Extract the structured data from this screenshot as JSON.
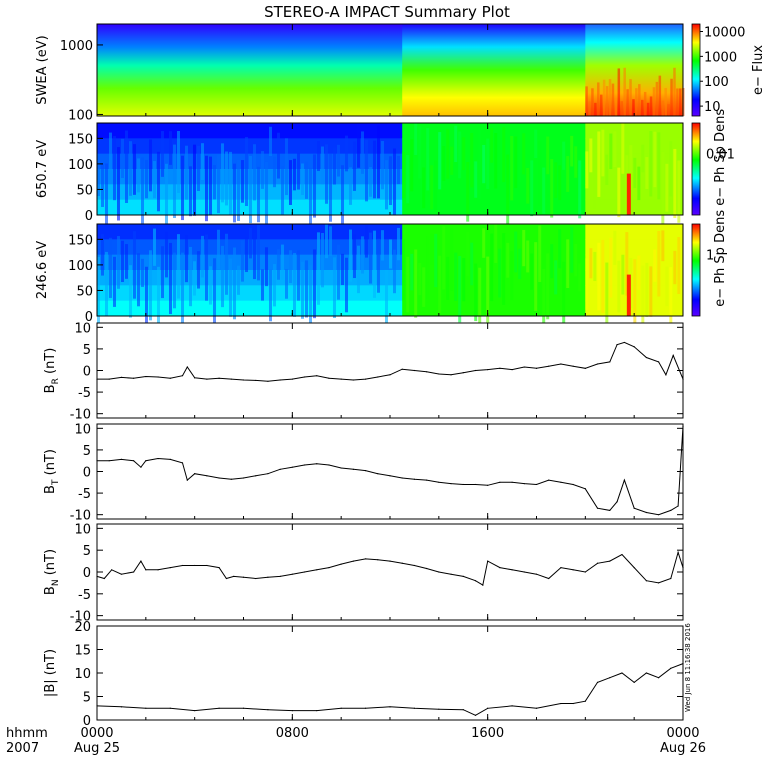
{
  "title": "STEREO-A IMPACT Summary Plot",
  "chart_data": [
    {
      "type": "heatmap",
      "id": "swea",
      "ylabel": "SWEA (eV)",
      "yscale": "log",
      "ylim": [
        95,
        2000
      ],
      "yticks": [
        "100",
        "1000"
      ],
      "colorbar_label": "e− Flux",
      "colorbar_ticks": [
        "10",
        "100",
        "1000",
        "10000"
      ],
      "colorbar_range": [
        4,
        20000
      ],
      "profile_regions": [
        {
          "x_start": 0.0,
          "x_end": 12.5,
          "flux_bottom": 500,
          "flux_top": 2
        },
        {
          "x_start": 12.5,
          "x_end": 20.0,
          "flux_bottom": 3000,
          "flux_top": 3
        },
        {
          "x_start": 20.0,
          "x_end": 24.0,
          "flux_bottom": 10000,
          "flux_top": 8
        }
      ]
    },
    {
      "type": "heatmap",
      "id": "pad650",
      "ylabel": "650.7 eV",
      "ylim": [
        0,
        180
      ],
      "yticks": [
        "0",
        "50",
        "100",
        "150"
      ],
      "colorbar_label": "e− Ph Sp Dens",
      "colorbar_ticks": [
        "0.01"
      ],
      "regions": [
        {
          "x_start": 0.0,
          "x_end": 12.5,
          "level": 0.25
        },
        {
          "x_start": 12.5,
          "x_end": 20.0,
          "level": 0.58
        },
        {
          "x_start": 20.0,
          "x_end": 24.0,
          "level": 0.72
        }
      ]
    },
    {
      "type": "heatmap",
      "id": "pad246",
      "ylabel": "246.6 eV",
      "ylim": [
        0,
        180
      ],
      "yticks": [
        "0",
        "50",
        "100",
        "150"
      ],
      "colorbar_label": "e− Ph Sp Dens",
      "colorbar_ticks": [
        "1"
      ],
      "regions": [
        {
          "x_start": 0.0,
          "x_end": 12.5,
          "level": 0.28
        },
        {
          "x_start": 12.5,
          "x_end": 20.0,
          "level": 0.62
        },
        {
          "x_start": 20.0,
          "x_end": 24.0,
          "level": 0.78
        }
      ]
    },
    {
      "type": "line",
      "id": "br",
      "ylabel": "B",
      "ylabel_sub": "R",
      "ylabel_unit": "(nT)",
      "ylim": [
        -11,
        11
      ],
      "yticks": [
        -10,
        -5,
        0,
        5,
        10
      ],
      "x": [
        0,
        0.5,
        1,
        1.5,
        2,
        2.5,
        3,
        3.5,
        3.7,
        4,
        4.5,
        5,
        5.5,
        6,
        6.5,
        7,
        7.5,
        8,
        8.5,
        9,
        9.5,
        10,
        10.5,
        11,
        11.5,
        12,
        12.5,
        13,
        13.5,
        14,
        14.5,
        15,
        15.5,
        16,
        16.5,
        17,
        17.5,
        18,
        18.5,
        19,
        19.5,
        20,
        20.5,
        21,
        21.3,
        21.6,
        22,
        22.5,
        23,
        23.3,
        23.6,
        24
      ],
      "values": [
        -2,
        -2,
        -1.6,
        -1.8,
        -1.4,
        -1.5,
        -1.8,
        -1.2,
        0.8,
        -1.7,
        -2.0,
        -1.8,
        -2.0,
        -2.2,
        -2.3,
        -2.5,
        -2.2,
        -2.0,
        -1.5,
        -1.2,
        -1.8,
        -2.0,
        -2.2,
        -2.0,
        -1.5,
        -1.0,
        0.3,
        0.0,
        -0.3,
        -0.8,
        -1.0,
        -0.5,
        0.0,
        0.2,
        0.5,
        0.2,
        0.8,
        0.5,
        1.0,
        1.5,
        1.0,
        0.5,
        1.5,
        2.0,
        6.0,
        6.5,
        5.5,
        3.0,
        2.0,
        -1.0,
        3.5,
        -2.0
      ]
    },
    {
      "type": "line",
      "id": "bt",
      "ylabel": "B",
      "ylabel_sub": "T",
      "ylabel_unit": "(nT)",
      "ylim": [
        -11,
        11
      ],
      "yticks": [
        -10,
        -5,
        0,
        5,
        10
      ],
      "x": [
        0,
        0.5,
        1,
        1.5,
        1.8,
        2,
        2.5,
        3,
        3.5,
        3.7,
        4,
        4.5,
        5,
        5.5,
        6,
        6.5,
        7,
        7.5,
        8,
        8.5,
        9,
        9.5,
        10,
        10.5,
        11,
        11.5,
        12,
        12.5,
        13,
        13.5,
        14,
        14.5,
        15,
        15.5,
        16,
        16.5,
        17,
        17.5,
        18,
        18.5,
        19,
        19.5,
        20,
        20.5,
        21,
        21.3,
        21.6,
        22,
        22.5,
        23,
        23.5,
        23.8,
        24
      ],
      "values": [
        2.5,
        2.5,
        2.8,
        2.5,
        1.0,
        2.5,
        3.0,
        2.8,
        2.0,
        -2.0,
        -0.5,
        -1.0,
        -1.5,
        -1.8,
        -1.5,
        -1.0,
        -0.5,
        0.5,
        1.0,
        1.5,
        1.8,
        1.5,
        0.8,
        0.5,
        0.2,
        -0.5,
        -1.0,
        -1.5,
        -1.8,
        -2.0,
        -2.5,
        -2.8,
        -3.0,
        -3.0,
        -3.2,
        -2.5,
        -2.5,
        -2.8,
        -3.0,
        -2.0,
        -2.5,
        -3.0,
        -4.0,
        -8.5,
        -9.0,
        -7.0,
        -2.0,
        -8.5,
        -9.5,
        -10.0,
        -9.0,
        -8.0,
        10.5
      ]
    },
    {
      "type": "line",
      "id": "bn",
      "ylabel": "B",
      "ylabel_sub": "N",
      "ylabel_unit": "(nT)",
      "ylim": [
        -11,
        11
      ],
      "yticks": [
        -10,
        -5,
        0,
        5,
        10
      ],
      "x": [
        0,
        0.3,
        0.6,
        1,
        1.5,
        1.8,
        2,
        2.5,
        3,
        3.5,
        4,
        4.5,
        5,
        5.3,
        5.6,
        6,
        6.5,
        7,
        7.5,
        8,
        8.5,
        9,
        9.5,
        10,
        10.5,
        11,
        11.5,
        12,
        12.5,
        13,
        13.5,
        14,
        14.5,
        15,
        15.5,
        15.8,
        16,
        16.5,
        17,
        17.5,
        18,
        18.5,
        19,
        19.5,
        20,
        20.5,
        21,
        21.5,
        22,
        22.5,
        23,
        23.5,
        23.8,
        24
      ],
      "values": [
        -1,
        -1.5,
        0.5,
        -0.5,
        0,
        2.5,
        0.5,
        0.5,
        1.0,
        1.5,
        1.5,
        1.5,
        1.0,
        -1.5,
        -1.0,
        -1.2,
        -1.5,
        -1.2,
        -1.0,
        -0.5,
        0,
        0.5,
        1.0,
        1.8,
        2.5,
        3.0,
        2.8,
        2.5,
        2.0,
        1.5,
        0.8,
        0,
        -0.5,
        -1.0,
        -2.0,
        -3.0,
        2.5,
        1.0,
        0.5,
        0.0,
        -0.5,
        -1.5,
        1.0,
        0.5,
        0.0,
        2.0,
        2.5,
        4.0,
        1.0,
        -2.0,
        -2.5,
        -1.5,
        4.5,
        1.0
      ]
    },
    {
      "type": "line",
      "id": "bmag",
      "ylabel": "|B| (nT)",
      "ylim": [
        0,
        20
      ],
      "yticks": [
        0,
        5,
        10,
        15,
        20
      ],
      "x": [
        0,
        1,
        2,
        3,
        4,
        5,
        6,
        7,
        8,
        9,
        10,
        11,
        12,
        13,
        14,
        15,
        15.5,
        16,
        17,
        18,
        19,
        19.5,
        20,
        20.5,
        21,
        21.5,
        22,
        22.5,
        23,
        23.5,
        24
      ],
      "values": [
        3.0,
        2.8,
        2.5,
        2.5,
        2.0,
        2.5,
        2.5,
        2.2,
        2.0,
        2.0,
        2.5,
        2.5,
        2.8,
        2.5,
        2.3,
        2.2,
        1.0,
        2.5,
        3.0,
        2.5,
        3.5,
        3.5,
        4.0,
        8.0,
        9.0,
        10.0,
        8.0,
        10.0,
        9.0,
        11.0,
        12.0
      ]
    }
  ],
  "xaxis": {
    "range": [
      "0000",
      "0000"
    ],
    "tick_labels": [
      "0000",
      "0800",
      "1600",
      "0000"
    ],
    "tick_hours": [
      0,
      8,
      16,
      24
    ],
    "date_labels": [
      "Aug 25",
      "",
      "",
      "Aug 26"
    ],
    "corner_top": "hhmm",
    "corner_bottom": "2007"
  },
  "timestamp": "Wed Jun  8 11:16:38 2016",
  "colors": {
    "line": "#000000",
    "rainbow": [
      "#5a00ff",
      "#0000ff",
      "#00ffff",
      "#00ff00",
      "#ffff00",
      "#ff0000"
    ]
  }
}
